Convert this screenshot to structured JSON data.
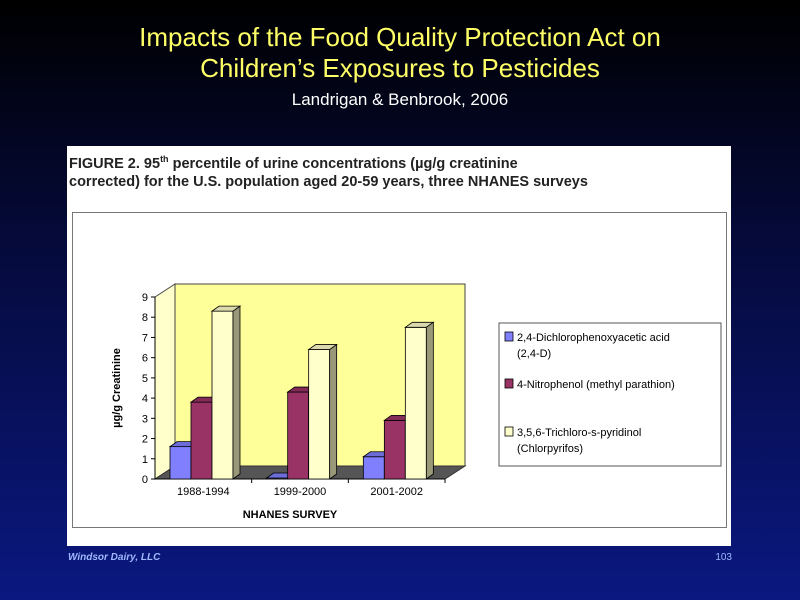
{
  "slide": {
    "title_line1": "Impacts of the Food Quality Protection Act on",
    "title_line2": "Children’s Exposures to Pesticides",
    "subtitle": "Landrigan & Benbrook, 2006",
    "footer_left": "Windsor Dairy, LLC",
    "page_number": "103"
  },
  "figure": {
    "caption_prefix": "FIGURE 2.  95",
    "caption_sup": "th",
    "caption_line1_rest": " percentile of urine concentrations (µg/g creatinine",
    "caption_line2": "corrected) for the U.S. population aged 20-59 years, three NHANES surveys"
  },
  "chart_data": {
    "type": "bar",
    "categories": [
      "1988-1994",
      "1999-2000",
      "2001-2002"
    ],
    "series": [
      {
        "name": "2,4-Dichlorophenoxyacetic acid (2,4-D)",
        "legend_lines": [
          "2,4-Dichlorophenoxyacetic acid",
          "(2,4-D)"
        ],
        "values": [
          1.6,
          0.05,
          1.1
        ],
        "color": "#8080ff"
      },
      {
        "name": "4-Nitrophenol (methyl parathion)",
        "legend_lines": [
          "4-Nitrophenol (methyl parathion)"
        ],
        "values": [
          3.8,
          4.3,
          2.9
        ],
        "color": "#993366"
      },
      {
        "name": "3,5,6-Trichloro-s-pyridinol (Chlorpyrifos)",
        "legend_lines": [
          "3,5,6-Trichloro-s-pyridinol",
          "(Chlorpyrifos)"
        ],
        "values": [
          8.3,
          6.4,
          7.5
        ],
        "color": "#ffffcc"
      }
    ],
    "xlabel": "NHANES SURVEY",
    "ylabel": "µg/g Creatinine",
    "ylim": [
      0,
      9
    ],
    "yticks": [
      "0",
      "1",
      "2",
      "3",
      "4",
      "5",
      "6",
      "7",
      "8",
      "9"
    ],
    "grid": false,
    "legend_position": "right",
    "wall_color": "#ffff99"
  }
}
